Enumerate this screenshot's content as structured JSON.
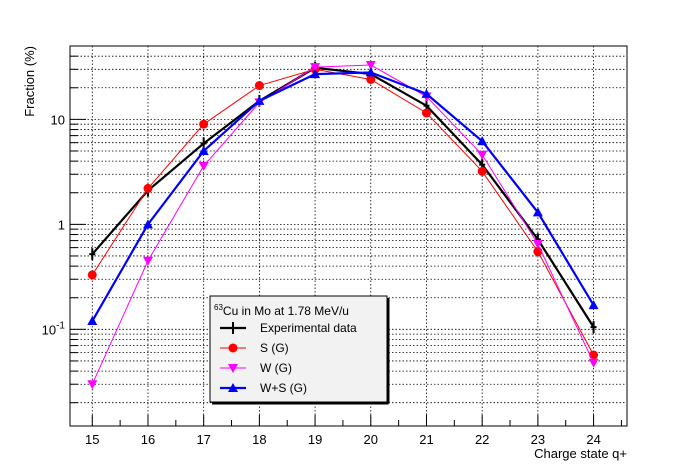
{
  "chart_data": {
    "type": "line",
    "title": "",
    "xlabel": "Charge state q+",
    "ylabel": "Fraction (%)",
    "x": [
      15,
      16,
      17,
      18,
      19,
      20,
      21,
      22,
      23,
      24
    ],
    "xlim": [
      14.6,
      24.6
    ],
    "ylim": [
      0.012,
      50
    ],
    "yscale": "log",
    "grid": true,
    "x_tick_labels": [
      "15",
      "16",
      "17",
      "18",
      "19",
      "20",
      "21",
      "22",
      "23",
      "24"
    ],
    "y_tick_labels": [
      {
        "value": 0.1,
        "base": "10",
        "exp": "-1"
      },
      {
        "value": 1,
        "text": "1"
      },
      {
        "value": 10,
        "text": "10"
      }
    ],
    "legend_placement": "bottom-center",
    "legend_header": {
      "sup": "63",
      "text": "Cu in Mo at 1.78 MeV/u"
    },
    "series": [
      {
        "name": "Experimental data",
        "color": "#000000",
        "marker": "errorbar",
        "values": [
          0.52,
          2.1,
          5.9,
          15,
          31,
          27,
          13.5,
          3.7,
          0.72,
          0.105
        ]
      },
      {
        "name": "S (G)",
        "color": "#ff0000",
        "marker": "circle",
        "values": [
          0.33,
          2.2,
          9,
          21,
          30,
          24,
          11.5,
          3.2,
          0.55,
          0.057
        ]
      },
      {
        "name": "W (G)",
        "color": "#ff00ff",
        "marker": "triangle-down",
        "values": [
          0.03,
          0.45,
          3.6,
          14.5,
          31.5,
          33,
          16.5,
          4.6,
          0.65,
          0.048
        ]
      },
      {
        "name": "W+S (G)",
        "color": "#0000ff",
        "marker": "triangle-up",
        "values": [
          0.12,
          1.0,
          5.0,
          15,
          27,
          28,
          17.5,
          6.2,
          1.3,
          0.17
        ]
      }
    ]
  }
}
